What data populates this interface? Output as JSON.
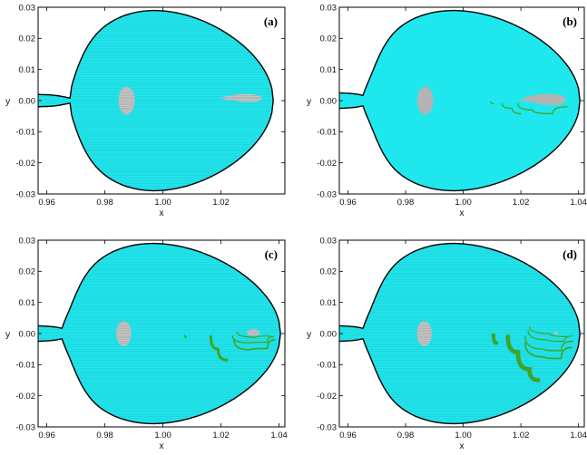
{
  "colors": {
    "region": "#1ee8ee",
    "hatch": "#2ab8c4",
    "island": "#b3b3b3",
    "chaos": "#3ea52a",
    "boundary": "#000000"
  },
  "chart_data": [
    {
      "type": "area",
      "panel": "(a)",
      "xlabel": "x",
      "ylabel": "y",
      "xlim": [
        0.957,
        1.042
      ],
      "ylim": [
        -0.03,
        0.03
      ],
      "xticks": [
        "0.96",
        "0.98",
        "1.00",
        "1.02"
      ],
      "yticks": [
        "0.03",
        "0.02",
        "0.01",
        "0.00",
        "-0.01",
        "-0.02",
        "-0.03"
      ],
      "boundary": {
        "y_max": 0.0285,
        "x_tip": 1.038,
        "neck_x": 0.958,
        "neck_y": 0.002
      },
      "hatched": true,
      "islands": [
        {
          "shape": "ellipse",
          "cx": 0.9875,
          "cy": 0.0,
          "rx": 0.0028,
          "ry": 0.0045
        },
        {
          "shape": "teardrop",
          "x0": 1.0195,
          "x1": 1.034,
          "cy": 0.0008,
          "h": 0.0017
        }
      ],
      "chaotic_bands": []
    },
    {
      "type": "area",
      "panel": "(b)",
      "xlabel": "x",
      "ylabel": "y",
      "xlim": [
        0.957,
        1.042
      ],
      "ylim": [
        -0.03,
        0.03
      ],
      "xticks": [
        "0.96",
        "0.98",
        "1.00",
        "1.02",
        "1.04"
      ],
      "yticks": [
        "0.03",
        "0.02",
        "0.01",
        "0.00",
        "-0.01",
        "-0.02",
        "-0.03"
      ],
      "boundary": {
        "y_max": 0.0285,
        "x_tip": 1.0405,
        "neck_x": 0.958,
        "neck_y": 0.0025
      },
      "hatched": false,
      "islands": [
        {
          "shape": "ellipse",
          "cx": 0.9868,
          "cy": 0.0,
          "rx": 0.0028,
          "ry": 0.0045
        },
        {
          "shape": "teardrop",
          "x0": 1.0195,
          "x1": 1.0355,
          "cy": 0.0003,
          "h": 0.0024
        }
      ],
      "chaotic_bands": [
        {
          "points": [
            [
              1.019,
              -0.001
            ],
            [
              1.024,
              -0.003
            ],
            [
              1.031,
              -0.0042
            ],
            [
              1.036,
              -0.002
            ]
          ],
          "width": 0.0004
        },
        {
          "points": [
            [
              1.0135,
              -0.001
            ],
            [
              1.017,
              -0.0025
            ],
            [
              1.02,
              -0.0042
            ]
          ],
          "width": 0.0004
        },
        {
          "points": [
            [
              1.0095,
              -0.0004
            ],
            [
              1.0105,
              -0.001
            ]
          ],
          "width": 0.0003
        }
      ]
    },
    {
      "type": "area",
      "panel": "(c)",
      "xlabel": "x",
      "ylabel": "y",
      "xlim": [
        0.957,
        1.042
      ],
      "ylim": [
        -0.03,
        0.03
      ],
      "xticks": [
        "0.96",
        "0.98",
        "1.00",
        "1.02",
        "1.04"
      ],
      "yticks": [
        "0.03",
        "0.02",
        "0.01",
        "0.00",
        "-0.01",
        "-0.02",
        "-0.03"
      ],
      "boundary": {
        "y_max": 0.0285,
        "x_tip": 1.0405,
        "neck_x": 0.958,
        "neck_y": 0.0025
      },
      "hatched": true,
      "islands": [
        {
          "shape": "ellipse",
          "cx": 0.9865,
          "cy": 0.0,
          "rx": 0.0026,
          "ry": 0.004
        },
        {
          "shape": "ellipse",
          "cx": 1.0312,
          "cy": 0.0003,
          "rx": 0.0023,
          "ry": 0.0011
        }
      ],
      "chaotic_bands": [
        {
          "points": [
            [
              1.0165,
              -0.001
            ],
            [
              1.019,
              -0.005
            ],
            [
              1.022,
              -0.0085
            ]
          ],
          "width": 0.0009
        },
        {
          "points": [
            [
              1.0245,
              -0.002
            ],
            [
              1.03,
              -0.0052
            ],
            [
              1.036,
              -0.0048
            ],
            [
              1.0385,
              -0.002
            ]
          ],
          "width": 0.0005
        },
        {
          "points": [
            [
              1.024,
              -0.0008
            ],
            [
              1.03,
              -0.003
            ],
            [
              1.036,
              -0.0028
            ],
            [
              1.038,
              -0.001
            ]
          ],
          "width": 0.0004
        },
        {
          "points": [
            [
              1.0255,
              0.0005
            ],
            [
              1.032,
              -0.0012
            ],
            [
              1.037,
              -0.0008
            ]
          ],
          "width": 0.0003
        },
        {
          "points": [
            [
              1.0075,
              -0.0006
            ],
            [
              1.008,
              -0.0012
            ]
          ],
          "width": 0.0005
        }
      ]
    },
    {
      "type": "area",
      "panel": "(d)",
      "xlabel": "x",
      "ylabel": "y",
      "xlim": [
        0.957,
        1.042
      ],
      "ylim": [
        -0.03,
        0.03
      ],
      "xticks": [
        "0.96",
        "0.98",
        "1.00",
        "1.02",
        "1.04"
      ],
      "yticks": [
        "0.03",
        "0.02",
        "0.01",
        "0.00",
        "-0.01",
        "-0.02",
        "-0.03"
      ],
      "boundary": {
        "y_max": 0.0285,
        "x_tip": 1.0405,
        "neck_x": 0.958,
        "neck_y": 0.0025
      },
      "hatched": true,
      "islands": [
        {
          "shape": "ellipse",
          "cx": 0.9865,
          "cy": 0.0,
          "rx": 0.0026,
          "ry": 0.004
        },
        {
          "shape": "ellipse",
          "cx": 1.0322,
          "cy": 0.0002,
          "rx": 0.0007,
          "ry": 0.0005
        }
      ],
      "chaotic_bands": [
        {
          "points": [
            [
              1.0155,
              -0.001
            ],
            [
              1.019,
              -0.006
            ],
            [
              1.023,
              -0.0115
            ],
            [
              1.026,
              -0.015
            ]
          ],
          "width": 0.0014
        },
        {
          "points": [
            [
              1.0215,
              -0.003
            ],
            [
              1.028,
              -0.0075
            ],
            [
              1.034,
              -0.008
            ],
            [
              1.0375,
              -0.0045
            ]
          ],
          "width": 0.0005
        },
        {
          "points": [
            [
              1.0215,
              -0.001
            ],
            [
              1.028,
              -0.005
            ],
            [
              1.034,
              -0.0055
            ],
            [
              1.038,
              -0.0025
            ]
          ],
          "width": 0.0004
        },
        {
          "points": [
            [
              1.0225,
              0.001
            ],
            [
              1.029,
              -0.002
            ],
            [
              1.035,
              -0.0025
            ],
            [
              1.038,
              -0.0008
            ]
          ],
          "width": 0.0003
        },
        {
          "points": [
            [
              1.023,
              0.0022
            ],
            [
              1.03,
              0.0
            ],
            [
              1.036,
              -0.001
            ]
          ],
          "width": 0.0002
        },
        {
          "points": [
            [
              1.0105,
              -0.0005
            ],
            [
              1.0115,
              -0.003
            ]
          ],
          "width": 0.0012
        }
      ]
    }
  ]
}
